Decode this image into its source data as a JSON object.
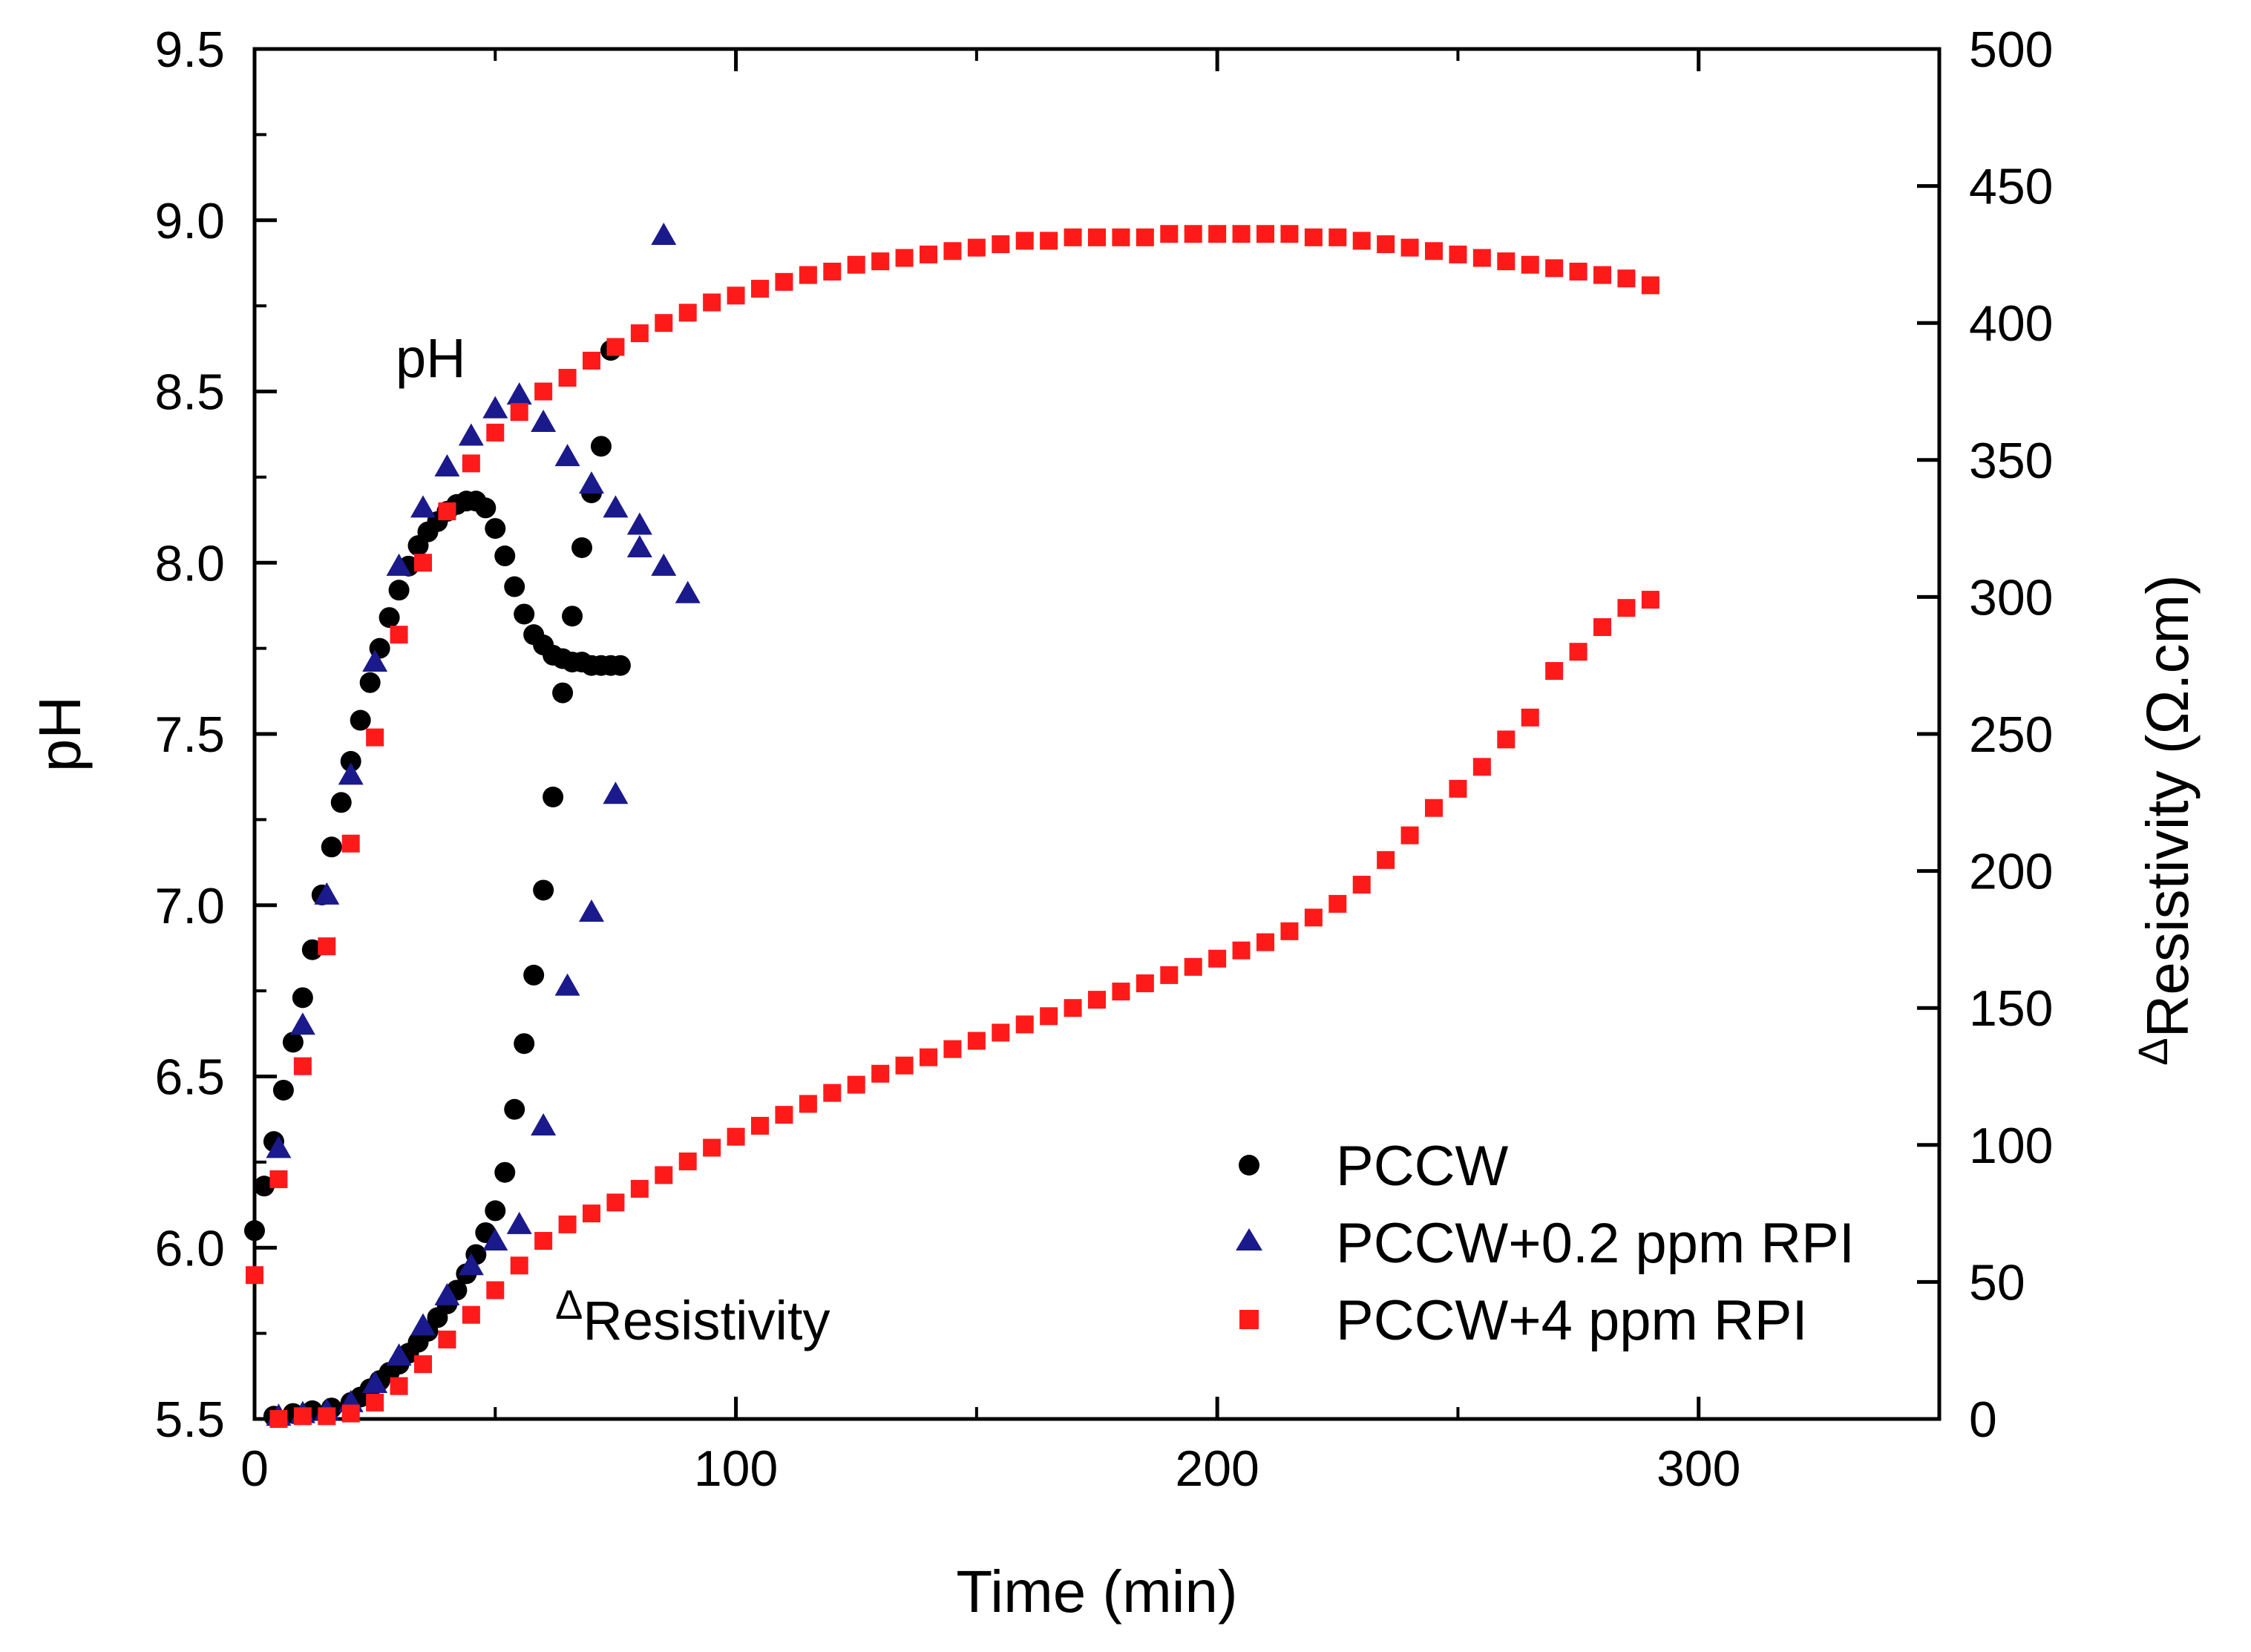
{
  "chart_data": {
    "type": "scatter",
    "xlabel": "Time (min)",
    "ylabel": "pH",
    "y2label": {
      "prefix": "Δ",
      "main": "Resistivity (Ω.cm)"
    },
    "xlim": [
      0,
      350
    ],
    "ylim": [
      5.5,
      9.5
    ],
    "y2lim": [
      0,
      500
    ],
    "xticks": [
      "0",
      "100",
      "200",
      "300"
    ],
    "yticks": [
      "5.5",
      "6.0",
      "6.5",
      "7.0",
      "7.5",
      "8.0",
      "8.5",
      "9.0",
      "9.5"
    ],
    "y2ticks": [
      "0",
      "50",
      "100",
      "150",
      "200",
      "250",
      "300",
      "350",
      "400",
      "450",
      "500"
    ],
    "annotations": {
      "ph": "pH",
      "resistivity_prefix": "Δ",
      "resistivity": "Resistivity"
    },
    "legend": {
      "placement": "bottom-right",
      "entries": [
        "PCCW",
        "PCCW+0.2 ppm RPI",
        "PCCW+4 ppm RPI"
      ]
    },
    "series": [
      {
        "name": "PCCW",
        "axis": "pH",
        "marker": "circle",
        "color": "#000000",
        "x": [
          0,
          2,
          4,
          6,
          8,
          10,
          12,
          14,
          16,
          18,
          20,
          22,
          24,
          26,
          28,
          30,
          32,
          34,
          36,
          38,
          40,
          42,
          44,
          46,
          48,
          50,
          52,
          54,
          56,
          58,
          60,
          62,
          64,
          66,
          68,
          70,
          72,
          74,
          76
        ],
        "y": [
          6.05,
          6.18,
          6.31,
          6.46,
          6.6,
          6.73,
          6.87,
          7.03,
          7.17,
          7.3,
          7.42,
          7.54,
          7.65,
          7.75,
          7.84,
          7.92,
          7.99,
          8.05,
          8.09,
          8.12,
          8.15,
          8.17,
          8.18,
          8.18,
          8.16,
          8.1,
          8.02,
          7.93,
          7.85,
          7.79,
          7.76,
          7.73,
          7.72,
          7.71,
          7.71,
          7.7,
          7.7,
          7.7,
          7.7
        ]
      },
      {
        "name": "PCCW",
        "axis": "resistivity",
        "marker": "circle",
        "color": "#000000",
        "x": [
          4,
          8,
          12,
          16,
          20,
          22,
          24,
          26,
          28,
          30,
          32,
          34,
          36,
          38,
          40,
          42,
          44,
          46,
          48,
          50,
          52,
          54,
          56,
          58,
          60,
          62,
          64,
          66,
          68,
          70,
          72,
          74
        ],
        "y": [
          1,
          2,
          3,
          4,
          6,
          8,
          11,
          14,
          17,
          20,
          24,
          28,
          32,
          37,
          42,
          47,
          53,
          60,
          68,
          76,
          90,
          113,
          137,
          162,
          193,
          227,
          265,
          293,
          318,
          338,
          355,
          390
        ]
      },
      {
        "name": "PCCW+0.2 ppm RPI",
        "axis": "pH",
        "marker": "triangle",
        "color": "#1a1a8c",
        "x": [
          5,
          10,
          15,
          20,
          25,
          30,
          35,
          40,
          45,
          50,
          55,
          60,
          65,
          70,
          75,
          80,
          85,
          90
        ],
        "y": [
          6.29,
          6.65,
          7.03,
          7.38,
          7.71,
          7.99,
          8.16,
          8.28,
          8.37,
          8.45,
          8.49,
          8.41,
          8.31,
          8.23,
          8.16,
          8.11,
          7.99,
          7.91
        ]
      },
      {
        "name": "PCCW+0.2 ppm RPI",
        "axis": "resistivity",
        "marker": "triangle",
        "color": "#1a1a8c",
        "x": [
          5,
          10,
          15,
          20,
          25,
          30,
          35,
          40,
          45,
          50,
          55,
          60,
          65,
          70,
          75,
          80,
          85
        ],
        "y": [
          1,
          2,
          3,
          6,
          13,
          23,
          34,
          45,
          56,
          65,
          71,
          107,
          158,
          185,
          228,
          318,
          432
        ]
      },
      {
        "name": "PCCW+4 ppm RPI",
        "axis": "pH",
        "marker": "square",
        "color": "#ff1a1a",
        "x": [
          0,
          5,
          10,
          15,
          20,
          25,
          30,
          35,
          40,
          45,
          50,
          55,
          60,
          65,
          70,
          75,
          80,
          85,
          90,
          95,
          100,
          105,
          110,
          115,
          120,
          125,
          130,
          135,
          140,
          145,
          150,
          155,
          160,
          165,
          170,
          175,
          180,
          185,
          190,
          195,
          200,
          205,
          210,
          215,
          220,
          225,
          230,
          235,
          240,
          245,
          250,
          255,
          260,
          265,
          270,
          275,
          280,
          285,
          290
        ],
        "y": [
          5.92,
          6.2,
          6.53,
          6.88,
          7.18,
          7.49,
          7.79,
          8.0,
          8.15,
          8.29,
          8.38,
          8.44,
          8.5,
          8.54,
          8.59,
          8.63,
          8.67,
          8.7,
          8.73,
          8.76,
          8.78,
          8.8,
          8.82,
          8.84,
          8.85,
          8.87,
          8.88,
          8.89,
          8.9,
          8.91,
          8.92,
          8.93,
          8.94,
          8.94,
          8.95,
          8.95,
          8.95,
          8.95,
          8.96,
          8.96,
          8.96,
          8.96,
          8.96,
          8.96,
          8.95,
          8.95,
          8.94,
          8.93,
          8.92,
          8.91,
          8.9,
          8.89,
          8.88,
          8.87,
          8.86,
          8.85,
          8.84,
          8.83,
          8.81
        ]
      },
      {
        "name": "PCCW+4 ppm RPI",
        "axis": "resistivity",
        "marker": "square",
        "color": "#ff1a1a",
        "x": [
          5,
          10,
          15,
          20,
          25,
          30,
          35,
          40,
          45,
          50,
          55,
          60,
          65,
          70,
          75,
          80,
          85,
          90,
          95,
          100,
          105,
          110,
          115,
          120,
          125,
          130,
          135,
          140,
          145,
          150,
          155,
          160,
          165,
          170,
          175,
          180,
          185,
          190,
          195,
          200,
          205,
          210,
          215,
          220,
          225,
          230,
          235,
          240,
          245,
          250,
          255,
          260,
          265,
          270,
          275,
          280,
          285,
          290
        ],
        "y": [
          0,
          1,
          1,
          2,
          6,
          12,
          20,
          29,
          38,
          47,
          56,
          65,
          71,
          75,
          79,
          84,
          89,
          94,
          99,
          103,
          107,
          111,
          115,
          119,
          122,
          126,
          129,
          132,
          135,
          138,
          141,
          144,
          147,
          150,
          153,
          156,
          159,
          162,
          165,
          168,
          171,
          174,
          178,
          183,
          188,
          195,
          204,
          213,
          223,
          230,
          238,
          248,
          256,
          273,
          280,
          289,
          296,
          299
        ]
      }
    ]
  }
}
